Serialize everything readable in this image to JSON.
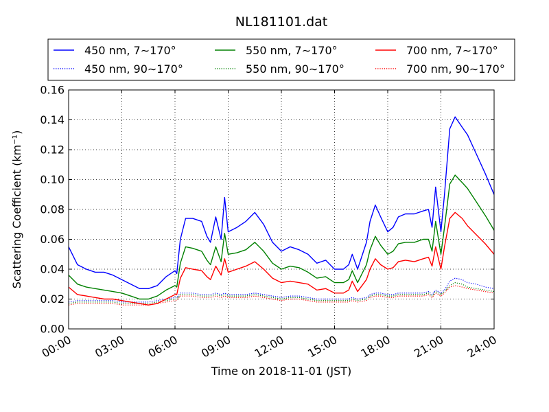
{
  "chart_data": {
    "type": "line",
    "title": "NL181101.dat",
    "xlabel": "Time on 2018-11-01 (JST)",
    "ylabel": "Scattering Coefficient (km⁻¹)",
    "x_unit": "hours",
    "xlim": [
      0,
      24
    ],
    "ylim": [
      0.0,
      0.16
    ],
    "grid": true,
    "legend": {
      "placement": "top",
      "columns": 3
    },
    "xtick_values": [
      0,
      3,
      6,
      9,
      12,
      15,
      18,
      21,
      24
    ],
    "xtick_labels": [
      "00:00",
      "03:00",
      "06:00",
      "09:00",
      "12:00",
      "15:00",
      "18:00",
      "21:00",
      "24:00"
    ],
    "ytick_values": [
      0.0,
      0.02,
      0.04,
      0.06,
      0.08,
      0.1,
      0.12,
      0.14,
      0.16
    ],
    "ytick_labels": [
      "0.00",
      "0.02",
      "0.04",
      "0.06",
      "0.08",
      "0.10",
      "0.12",
      "0.14",
      "0.16"
    ],
    "x": [
      0,
      0.5,
      1,
      1.5,
      2,
      2.5,
      3,
      3.5,
      4,
      4.5,
      5,
      5.5,
      6,
      6.1,
      6.3,
      6.6,
      7,
      7.5,
      7.8,
      8,
      8.3,
      8.6,
      8.8,
      9,
      9.5,
      10,
      10.5,
      11,
      11.5,
      12,
      12.5,
      13,
      13.5,
      14,
      14.5,
      15,
      15.5,
      15.8,
      16,
      16.3,
      16.8,
      17,
      17.3,
      17.6,
      18,
      18.3,
      18.6,
      19,
      19.5,
      20,
      20.3,
      20.5,
      20.7,
      21,
      21.2,
      21.5,
      21.8,
      22.2,
      22.5,
      23,
      23.5,
      24
    ],
    "series": [
      {
        "name": "450 nm, 7∼170°",
        "color": "#0000ff",
        "style": "solid",
        "values": [
          0.055,
          0.043,
          0.04,
          0.038,
          0.038,
          0.036,
          0.033,
          0.03,
          0.027,
          0.027,
          0.029,
          0.035,
          0.039,
          0.037,
          0.06,
          0.074,
          0.074,
          0.072,
          0.062,
          0.058,
          0.075,
          0.06,
          0.088,
          0.065,
          0.068,
          0.072,
          0.078,
          0.07,
          0.058,
          0.052,
          0.055,
          0.053,
          0.05,
          0.044,
          0.046,
          0.04,
          0.04,
          0.043,
          0.05,
          0.04,
          0.058,
          0.072,
          0.083,
          0.075,
          0.065,
          0.068,
          0.075,
          0.077,
          0.077,
          0.079,
          0.08,
          0.068,
          0.095,
          0.065,
          0.09,
          0.134,
          0.142,
          0.135,
          0.13,
          0.117,
          0.104,
          0.09
        ]
      },
      {
        "name": "450 nm, 90∼170°",
        "color": "#0000ff",
        "style": "dotted",
        "values": [
          0.018,
          0.019,
          0.019,
          0.019,
          0.019,
          0.019,
          0.018,
          0.018,
          0.018,
          0.018,
          0.019,
          0.02,
          0.021,
          0.021,
          0.024,
          0.024,
          0.024,
          0.023,
          0.023,
          0.023,
          0.024,
          0.023,
          0.024,
          0.023,
          0.023,
          0.023,
          0.024,
          0.023,
          0.022,
          0.021,
          0.022,
          0.022,
          0.021,
          0.02,
          0.02,
          0.02,
          0.02,
          0.02,
          0.021,
          0.02,
          0.021,
          0.023,
          0.024,
          0.024,
          0.023,
          0.023,
          0.024,
          0.024,
          0.024,
          0.024,
          0.025,
          0.023,
          0.026,
          0.024,
          0.026,
          0.032,
          0.034,
          0.033,
          0.031,
          0.03,
          0.028,
          0.027
        ]
      },
      {
        "name": "550 nm, 7∼170°",
        "color": "#008000",
        "style": "solid",
        "values": [
          0.036,
          0.03,
          0.028,
          0.027,
          0.026,
          0.025,
          0.024,
          0.022,
          0.02,
          0.02,
          0.022,
          0.026,
          0.029,
          0.028,
          0.044,
          0.055,
          0.054,
          0.052,
          0.046,
          0.043,
          0.055,
          0.045,
          0.064,
          0.05,
          0.051,
          0.053,
          0.058,
          0.052,
          0.044,
          0.04,
          0.042,
          0.041,
          0.038,
          0.034,
          0.035,
          0.031,
          0.031,
          0.033,
          0.039,
          0.031,
          0.043,
          0.053,
          0.062,
          0.056,
          0.05,
          0.052,
          0.057,
          0.058,
          0.058,
          0.06,
          0.06,
          0.052,
          0.072,
          0.05,
          0.068,
          0.097,
          0.103,
          0.098,
          0.094,
          0.085,
          0.076,
          0.066
        ]
      },
      {
        "name": "550 nm, 90∼170°",
        "color": "#008000",
        "style": "dotted",
        "values": [
          0.017,
          0.018,
          0.018,
          0.018,
          0.018,
          0.018,
          0.017,
          0.017,
          0.017,
          0.017,
          0.018,
          0.019,
          0.02,
          0.02,
          0.023,
          0.023,
          0.023,
          0.022,
          0.022,
          0.022,
          0.023,
          0.022,
          0.023,
          0.022,
          0.022,
          0.022,
          0.023,
          0.022,
          0.021,
          0.02,
          0.021,
          0.021,
          0.02,
          0.019,
          0.019,
          0.019,
          0.019,
          0.019,
          0.02,
          0.019,
          0.02,
          0.022,
          0.023,
          0.023,
          0.022,
          0.022,
          0.023,
          0.023,
          0.023,
          0.023,
          0.024,
          0.022,
          0.025,
          0.023,
          0.025,
          0.029,
          0.031,
          0.03,
          0.028,
          0.027,
          0.026,
          0.025
        ]
      },
      {
        "name": "700 nm, 7∼170°",
        "color": "#ff0000",
        "style": "solid",
        "values": [
          0.028,
          0.023,
          0.022,
          0.021,
          0.02,
          0.02,
          0.019,
          0.018,
          0.017,
          0.016,
          0.017,
          0.02,
          0.023,
          0.023,
          0.034,
          0.041,
          0.04,
          0.039,
          0.035,
          0.033,
          0.042,
          0.036,
          0.047,
          0.038,
          0.04,
          0.042,
          0.045,
          0.04,
          0.034,
          0.031,
          0.032,
          0.031,
          0.03,
          0.026,
          0.027,
          0.024,
          0.024,
          0.026,
          0.032,
          0.025,
          0.033,
          0.04,
          0.047,
          0.043,
          0.04,
          0.041,
          0.045,
          0.046,
          0.045,
          0.047,
          0.048,
          0.042,
          0.055,
          0.04,
          0.055,
          0.074,
          0.078,
          0.074,
          0.069,
          0.063,
          0.057,
          0.05
        ]
      },
      {
        "name": "700 nm, 90∼170°",
        "color": "#ff0000",
        "style": "dotted",
        "values": [
          0.016,
          0.017,
          0.017,
          0.017,
          0.017,
          0.017,
          0.016,
          0.016,
          0.016,
          0.016,
          0.017,
          0.018,
          0.019,
          0.019,
          0.022,
          0.022,
          0.022,
          0.021,
          0.021,
          0.021,
          0.022,
          0.021,
          0.022,
          0.021,
          0.021,
          0.021,
          0.022,
          0.021,
          0.02,
          0.019,
          0.02,
          0.02,
          0.019,
          0.018,
          0.018,
          0.018,
          0.018,
          0.018,
          0.019,
          0.018,
          0.019,
          0.021,
          0.022,
          0.022,
          0.021,
          0.021,
          0.022,
          0.022,
          0.022,
          0.022,
          0.023,
          0.021,
          0.024,
          0.022,
          0.024,
          0.028,
          0.029,
          0.028,
          0.027,
          0.026,
          0.025,
          0.024
        ]
      }
    ]
  }
}
